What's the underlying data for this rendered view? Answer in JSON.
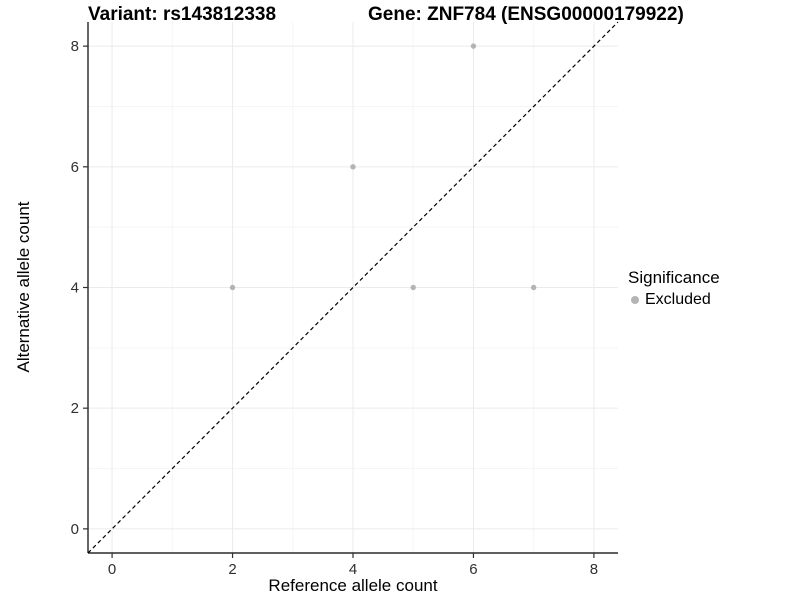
{
  "chart_data": {
    "type": "scatter",
    "title_left": "Variant: rs143812338",
    "title_right": "Gene: ZNF784 (ENSG00000179922)",
    "xlabel": "Reference allele count",
    "ylabel": "Alternative allele count",
    "xlim": [
      -0.4,
      8.4
    ],
    "ylim": [
      -0.4,
      8.4
    ],
    "x_ticks": [
      0,
      2,
      4,
      6,
      8
    ],
    "y_ticks": [
      0,
      2,
      4,
      6,
      8
    ],
    "x_minor_ticks": [
      1,
      3,
      5,
      7
    ],
    "y_minor_ticks": [
      1,
      3,
      5,
      7
    ],
    "grid": "on",
    "series": [
      {
        "name": "Excluded",
        "color": "#b4b4b4",
        "points": [
          [
            2,
            4
          ],
          [
            4,
            6
          ],
          [
            5,
            4
          ],
          [
            6,
            8
          ],
          [
            7,
            4
          ]
        ]
      }
    ],
    "reference_line": {
      "kind": "identity y=x",
      "style": "dashed",
      "color": "#000000"
    },
    "legend": {
      "title": "Significance",
      "position": "right",
      "entries": [
        {
          "label": "Excluded",
          "color": "#b4b4b4"
        }
      ]
    }
  },
  "colors": {
    "background": "#ffffff",
    "grid_major": "#ebebeb",
    "grid_minor": "#f5f5f5",
    "axis_line": "#000000",
    "tick_text": "#303030",
    "point": "#b4b4b4"
  }
}
